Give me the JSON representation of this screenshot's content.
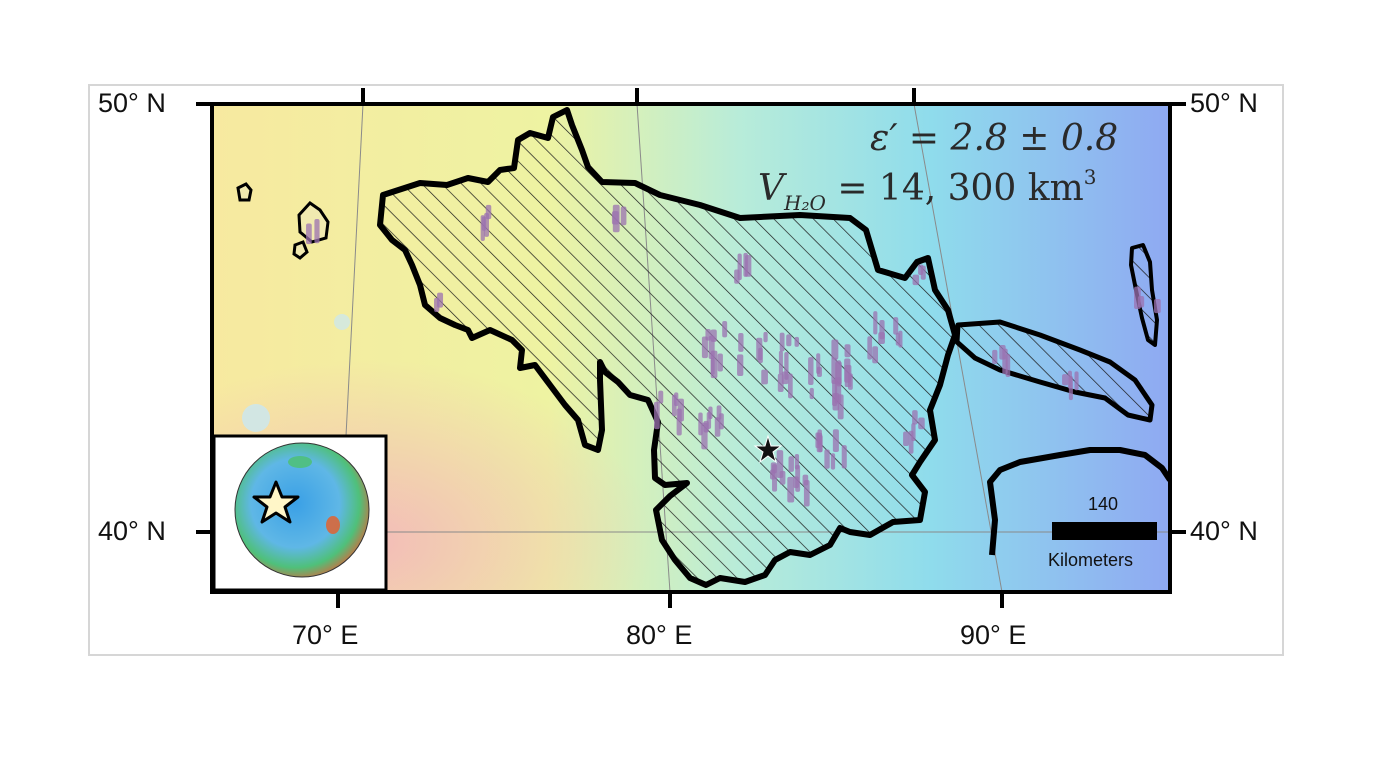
{
  "map": {
    "lat_labels": {
      "north": "50° N",
      "south": "40° N"
    },
    "lon_labels": [
      "70° E",
      "80° E",
      "90° E"
    ],
    "annotation": {
      "permittivity": "ε′ = 2.8 ± 0.8",
      "volume_prefix": "V",
      "volume_subscript": "H₂O",
      "volume_value": "= 14, 300 km",
      "volume_exponent": "3"
    },
    "scale_bar": {
      "value": "140",
      "unit": "Kilometers"
    },
    "colors": {
      "outline": "#000000",
      "detections": "#9b72b0",
      "hatch": "#1a1a1a",
      "marker": "#111111"
    },
    "inset": {
      "marker_icon": "star-icon",
      "marker_fill": "#fff6c8"
    }
  }
}
